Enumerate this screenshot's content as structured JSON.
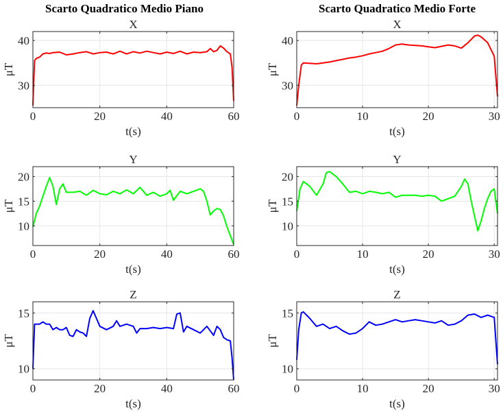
{
  "columns": [
    {
      "title": "Scarto Quadratico Medio Piano"
    },
    {
      "title": "Scarto Quadratico Medio Forte"
    }
  ],
  "colors": {
    "X": "#ff0000",
    "Y": "#00ff00",
    "Z": "#0000ff",
    "grid": "#e6e6e6",
    "axis": "#262626"
  },
  "chart_data": [
    {
      "type": "line",
      "title": "X",
      "xlabel": "t(s)",
      "ylabel": "μT",
      "xlim": [
        0,
        60
      ],
      "ylim": [
        25,
        42
      ],
      "xticks": [
        0,
        20,
        40,
        60
      ],
      "yticks": [
        30,
        40
      ],
      "grid": true,
      "series_color": "#ff0000",
      "x": [
        0,
        0.5,
        1,
        2,
        3,
        4,
        5,
        6,
        8,
        10,
        12,
        14,
        16,
        18,
        20,
        22,
        24,
        26,
        28,
        30,
        32,
        34,
        36,
        38,
        40,
        42,
        44,
        46,
        48,
        50,
        52,
        53,
        54,
        55,
        56,
        57,
        58,
        59,
        59.5,
        60
      ],
      "y": [
        25.5,
        35.5,
        36.0,
        36.3,
        37.0,
        37.2,
        37.1,
        37.3,
        37.4,
        36.8,
        37.0,
        37.3,
        37.5,
        37.0,
        37.3,
        37.4,
        37.0,
        37.6,
        37.0,
        37.5,
        37.2,
        37.6,
        37.3,
        37.0,
        37.4,
        37.1,
        37.6,
        37.0,
        37.4,
        37.3,
        37.5,
        38.2,
        37.5,
        37.8,
        38.8,
        38.3,
        37.5,
        37.0,
        34.0,
        26.5
      ]
    },
    {
      "type": "line",
      "title": "X",
      "xlabel": "t(s)",
      "ylabel": "μT",
      "xlim": [
        0,
        30.5
      ],
      "ylim": [
        25,
        42
      ],
      "xticks": [
        0,
        10,
        20,
        30
      ],
      "yticks": [
        30,
        40
      ],
      "grid": true,
      "series_color": "#ff0000",
      "x": [
        0,
        0.3,
        0.7,
        1,
        2,
        3,
        4,
        5,
        6,
        7,
        8,
        9,
        10,
        11,
        12,
        13,
        14,
        15,
        16,
        17,
        18,
        19,
        20,
        21,
        22,
        23,
        24,
        25,
        26,
        27,
        27.5,
        28,
        29,
        30,
        30.5
      ],
      "y": [
        25.5,
        30.0,
        34.5,
        35.0,
        34.9,
        34.8,
        35.0,
        35.2,
        35.5,
        35.8,
        36.1,
        36.3,
        36.6,
        37.0,
        37.3,
        37.6,
        38.2,
        39.0,
        39.2,
        39.0,
        38.9,
        38.8,
        38.6,
        38.4,
        38.7,
        39.0,
        38.8,
        38.3,
        39.5,
        41.0,
        41.2,
        40.8,
        39.5,
        36.5,
        27.5
      ]
    },
    {
      "type": "line",
      "title": "Y",
      "xlabel": "t(s)",
      "ylabel": "μT",
      "xlim": [
        0,
        60
      ],
      "ylim": [
        6,
        22
      ],
      "xticks": [
        0,
        20,
        40,
        60
      ],
      "yticks": [
        10,
        15,
        20
      ],
      "grid": true,
      "series_color": "#00ff00",
      "x": [
        0,
        1,
        2,
        3,
        4,
        5,
        6,
        7,
        8,
        9,
        10,
        12,
        14,
        16,
        18,
        20,
        22,
        24,
        26,
        28,
        30,
        32,
        34,
        36,
        38,
        40,
        41,
        42,
        44,
        46,
        48,
        50,
        51,
        52,
        53,
        54,
        55,
        56,
        57,
        58,
        59,
        60
      ],
      "y": [
        9.8,
        12.5,
        14.0,
        16.0,
        18.0,
        19.8,
        18.0,
        14.3,
        17.5,
        18.5,
        16.8,
        16.8,
        17.0,
        16.2,
        17.2,
        16.5,
        16.3,
        17.0,
        16.5,
        17.3,
        16.5,
        17.8,
        16.2,
        16.8,
        16.0,
        16.5,
        17.2,
        15.2,
        17.0,
        16.5,
        17.0,
        17.5,
        17.0,
        15.0,
        12.2,
        13.0,
        13.5,
        13.3,
        12.0,
        9.8,
        8.0,
        6.2
      ]
    },
    {
      "type": "line",
      "title": "Y",
      "xlabel": "t(s)",
      "ylabel": "μT",
      "xlim": [
        0,
        30.5
      ],
      "ylim": [
        6,
        22
      ],
      "xticks": [
        0,
        10,
        20,
        30
      ],
      "yticks": [
        10,
        15,
        20
      ],
      "grid": true,
      "series_color": "#00ff00",
      "x": [
        0,
        0.5,
        1,
        2,
        3,
        4,
        4.5,
        5,
        6,
        7,
        8,
        9,
        10,
        11,
        12,
        13,
        14,
        15,
        16,
        17,
        18,
        19,
        20,
        21,
        22,
        23,
        24,
        25,
        25.5,
        26,
        26.5,
        27,
        27.5,
        28,
        28.5,
        29,
        29.5,
        30,
        30.5
      ],
      "y": [
        13.0,
        17.5,
        19.0,
        18.0,
        16.2,
        18.5,
        20.8,
        21.0,
        20.0,
        18.5,
        16.8,
        17.0,
        16.5,
        17.0,
        16.8,
        16.5,
        16.8,
        15.8,
        16.2,
        16.2,
        16.2,
        16.0,
        16.2,
        16.0,
        15.0,
        15.5,
        16.0,
        18.0,
        19.5,
        18.5,
        15.0,
        12.0,
        9.0,
        11.0,
        13.5,
        15.5,
        17.0,
        17.5,
        12.5
      ]
    },
    {
      "type": "line",
      "title": "Z",
      "xlabel": "t(s)",
      "ylabel": "μT",
      "xlim": [
        0,
        60
      ],
      "ylim": [
        9,
        16
      ],
      "xticks": [
        0,
        20,
        40,
        60
      ],
      "yticks": [
        10,
        15
      ],
      "grid": true,
      "series_color": "#0000ff",
      "x": [
        0,
        0.5,
        1,
        2,
        3,
        4,
        5,
        6,
        7,
        8,
        9,
        10,
        11,
        12,
        13,
        14,
        15,
        16,
        17,
        18,
        19,
        20,
        22,
        24,
        25,
        26,
        28,
        30,
        31,
        32,
        34,
        36,
        38,
        40,
        42,
        43,
        44,
        45,
        46,
        48,
        50,
        52,
        54,
        55,
        56,
        57,
        58,
        59,
        59.5,
        60
      ],
      "y": [
        10.0,
        14.0,
        14.0,
        14.0,
        14.2,
        14.0,
        14.0,
        13.5,
        13.7,
        13.5,
        13.5,
        13.7,
        13.0,
        12.9,
        13.5,
        13.3,
        13.2,
        12.9,
        14.5,
        15.2,
        14.5,
        13.8,
        13.5,
        13.8,
        14.3,
        13.8,
        14.0,
        13.8,
        13.2,
        13.6,
        13.6,
        13.7,
        13.6,
        13.7,
        13.6,
        14.9,
        15.0,
        13.3,
        13.8,
        13.5,
        13.2,
        13.8,
        13.0,
        13.8,
        13.5,
        12.8,
        12.6,
        12.5,
        11.0,
        9.0
      ]
    },
    {
      "type": "line",
      "title": "Z",
      "xlabel": "t(s)",
      "ylabel": "μT",
      "xlim": [
        0,
        30.5
      ],
      "ylim": [
        9,
        16
      ],
      "xticks": [
        0,
        10,
        20,
        30
      ],
      "yticks": [
        10,
        15
      ],
      "grid": true,
      "series_color": "#0000ff",
      "x": [
        0,
        0.3,
        0.7,
        1,
        1.5,
        2,
        3,
        4,
        5,
        6,
        7,
        8,
        9,
        10,
        11,
        12,
        13,
        14,
        15,
        16,
        17,
        18,
        19,
        20,
        21,
        22,
        23,
        24,
        25,
        26,
        27,
        28,
        29,
        30,
        30.5
      ],
      "y": [
        10.8,
        13.5,
        15.0,
        15.1,
        14.8,
        14.5,
        13.8,
        14.0,
        13.6,
        13.8,
        13.4,
        13.1,
        13.2,
        13.6,
        14.2,
        13.9,
        14.0,
        14.2,
        14.4,
        14.2,
        14.3,
        14.4,
        14.3,
        14.2,
        14.1,
        14.3,
        13.9,
        14.0,
        14.3,
        14.8,
        14.9,
        14.6,
        14.8,
        14.6,
        10.4
      ]
    }
  ]
}
